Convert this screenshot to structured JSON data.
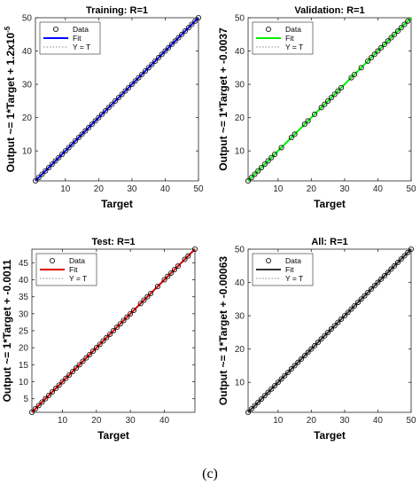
{
  "caption": "(c)",
  "colors": {
    "axis": "#262626",
    "marker": "#000000",
    "identity_line": "#888888"
  },
  "chart_data": [
    {
      "type": "scatter",
      "title": "Training: R=1",
      "xlabel": "Target",
      "ylabel": "Output ~= 1*Target + 1.2x10",
      "ylabel_superscript": "-5",
      "xlim": [
        1,
        50
      ],
      "ylim": [
        1,
        50
      ],
      "xticks": [
        10,
        20,
        30,
        40,
        50
      ],
      "yticks": [
        10,
        20,
        30,
        40,
        50
      ],
      "fit_color": "#0000ff",
      "legend": [
        "Data",
        "Fit",
        "Y = T"
      ],
      "legend_position": "top-left",
      "points": [
        1,
        2,
        3,
        4,
        5,
        6,
        7,
        8,
        9,
        10,
        11,
        12,
        13,
        14,
        15,
        16,
        17,
        18,
        19,
        20,
        21,
        22,
        23,
        24,
        25,
        26,
        27,
        28,
        29,
        30,
        31,
        32,
        33,
        34,
        35,
        36,
        37,
        38,
        39,
        40,
        41,
        42,
        43,
        44,
        45,
        46,
        47,
        48,
        49,
        50
      ],
      "fit_line": [
        [
          1,
          1
        ],
        [
          50,
          50
        ]
      ]
    },
    {
      "type": "scatter",
      "title": "Validation: R=1",
      "xlabel": "Target",
      "ylabel": "Output ~= 1*Target + -0.0037",
      "xlim": [
        1,
        50
      ],
      "ylim": [
        1,
        50
      ],
      "xticks": [
        10,
        20,
        30,
        40,
        50
      ],
      "yticks": [
        10,
        20,
        30,
        40,
        50
      ],
      "fit_color": "#00ee00",
      "legend": [
        "Data",
        "Fit",
        "Y = T"
      ],
      "legend_position": "top-left",
      "points": [
        1,
        2,
        3,
        4,
        5,
        6,
        7,
        8,
        9,
        11,
        14,
        15,
        18,
        19,
        21,
        23,
        24,
        25,
        26,
        27,
        28,
        29,
        32,
        33,
        35,
        37,
        38,
        39,
        40,
        41,
        42,
        43,
        44,
        45,
        46,
        47,
        48,
        49
      ],
      "fit_line": [
        [
          1,
          1
        ],
        [
          50,
          50
        ]
      ]
    },
    {
      "type": "scatter",
      "title": "Test: R=1",
      "xlabel": "Target",
      "ylabel": "Output ~= 1*Target + -0.0011",
      "xlim": [
        1,
        49
      ],
      "ylim": [
        1,
        49
      ],
      "xticks": [
        10,
        20,
        30,
        40
      ],
      "yticks": [
        5,
        10,
        15,
        20,
        25,
        30,
        35,
        40,
        45
      ],
      "fit_color": "#dd0000",
      "legend": [
        "Data",
        "Fit",
        "Y = T"
      ],
      "legend_position": "top-left",
      "points": [
        1,
        2,
        3,
        4,
        5,
        6,
        7,
        8,
        9,
        10,
        11,
        12,
        13,
        14,
        15,
        16,
        17,
        18,
        19,
        20,
        21,
        22,
        23,
        24,
        25,
        26,
        27,
        28,
        29,
        30,
        31,
        33,
        34,
        35,
        36,
        38,
        40,
        41,
        42,
        43,
        44,
        46,
        47,
        49
      ],
      "fit_line": [
        [
          1,
          1
        ],
        [
          49,
          49
        ]
      ]
    },
    {
      "type": "scatter",
      "title": "All: R=1",
      "xlabel": "Target",
      "ylabel": "Output ~= 1*Target + -0.00063",
      "xlim": [
        1,
        50
      ],
      "ylim": [
        1,
        50
      ],
      "xticks": [
        10,
        20,
        30,
        40,
        50
      ],
      "yticks": [
        10,
        20,
        30,
        40,
        50
      ],
      "fit_color": "#333333",
      "legend": [
        "Data",
        "Fit",
        "Y = T"
      ],
      "legend_position": "top-left",
      "points": [
        1,
        2,
        3,
        4,
        5,
        6,
        7,
        8,
        9,
        10,
        11,
        12,
        13,
        14,
        15,
        16,
        17,
        18,
        19,
        20,
        21,
        22,
        23,
        24,
        25,
        26,
        27,
        28,
        29,
        30,
        31,
        32,
        33,
        34,
        35,
        36,
        37,
        38,
        39,
        40,
        41,
        42,
        43,
        44,
        45,
        46,
        47,
        48,
        49,
        50
      ],
      "fit_line": [
        [
          1,
          1
        ],
        [
          50,
          50
        ]
      ]
    }
  ]
}
